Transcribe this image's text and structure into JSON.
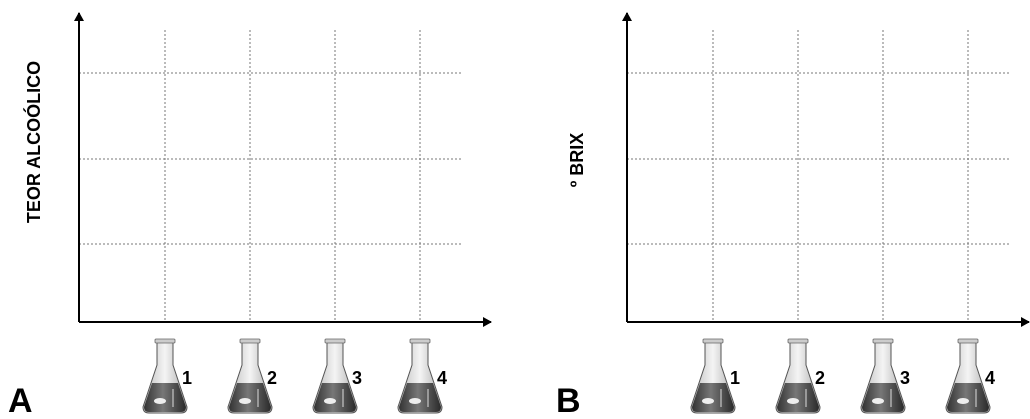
{
  "panels": [
    {
      "label": "A",
      "y_axis_label": "TEOR ALCOÓLICO",
      "flasks": [
        "1",
        "2",
        "3",
        "4"
      ]
    },
    {
      "label": "B",
      "y_axis_label": "º BRIX",
      "flasks": [
        "1",
        "2",
        "3",
        "4"
      ]
    }
  ]
}
